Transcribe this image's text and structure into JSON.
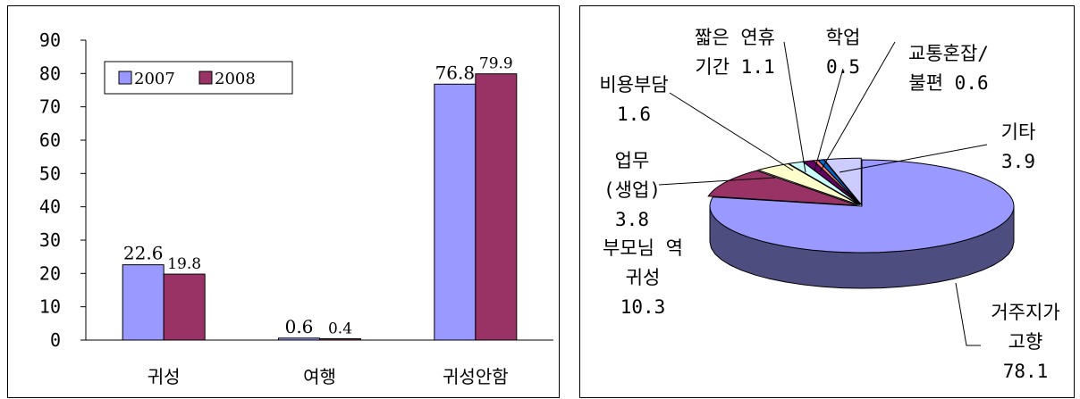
{
  "chart_data": [
    {
      "type": "bar",
      "categories": [
        "귀성",
        "여행",
        "귀성안함"
      ],
      "series": [
        {
          "name": "2007",
          "values": [
            22.6,
            0.6,
            76.8
          ],
          "labels": [
            "22.6",
            "0.6",
            "76.8"
          ],
          "color": "#9999ff"
        },
        {
          "name": "2008",
          "values": [
            19.8,
            0.4,
            79.9
          ],
          "labels": [
            "19.8",
            "0.4",
            "79.9"
          ],
          "color": "#993366"
        }
      ],
      "y_ticks": [
        "0",
        "10",
        "20",
        "30",
        "40",
        "50",
        "60",
        "70",
        "80",
        "90"
      ],
      "ylim": [
        0,
        90
      ],
      "grid": false,
      "legend_position": "top-left"
    },
    {
      "type": "pie",
      "style": "3d-exploded",
      "slices": [
        {
          "label": "거주지가 고향",
          "value": 78.1,
          "text_lines": [
            "거주지가",
            "고향",
            "78.1"
          ],
          "color": "#9999ff"
        },
        {
          "label": "부모님 역 귀성",
          "value": 10.3,
          "text_lines": [
            "부모님 역",
            "귀성",
            "10.3"
          ],
          "color": "#993366"
        },
        {
          "label": "업무(생업)",
          "value": 3.8,
          "text_lines": [
            "업무",
            "(생업)",
            "3.8"
          ],
          "color": "#ffffcc"
        },
        {
          "label": "비용부담",
          "value": 1.6,
          "text_lines": [
            "비용부담",
            "1.6"
          ],
          "color": "#ccffff"
        },
        {
          "label": "짧은 연휴 기간",
          "value": 1.1,
          "text_lines": [
            "짧은 연휴",
            "기간 1.1"
          ],
          "color": "#660066"
        },
        {
          "label": "학업",
          "value": 0.5,
          "text_lines": [
            "학업",
            "0.5"
          ],
          "color": "#ff8080"
        },
        {
          "label": "교통혼잡/불편",
          "value": 0.6,
          "text_lines": [
            "교통혼잡/",
            "불편 0.6"
          ],
          "color": "#0066cc"
        },
        {
          "label": "기타",
          "value": 3.9,
          "text_lines": [
            "기타",
            "3.9"
          ],
          "color": "#ccccff"
        }
      ]
    }
  ]
}
